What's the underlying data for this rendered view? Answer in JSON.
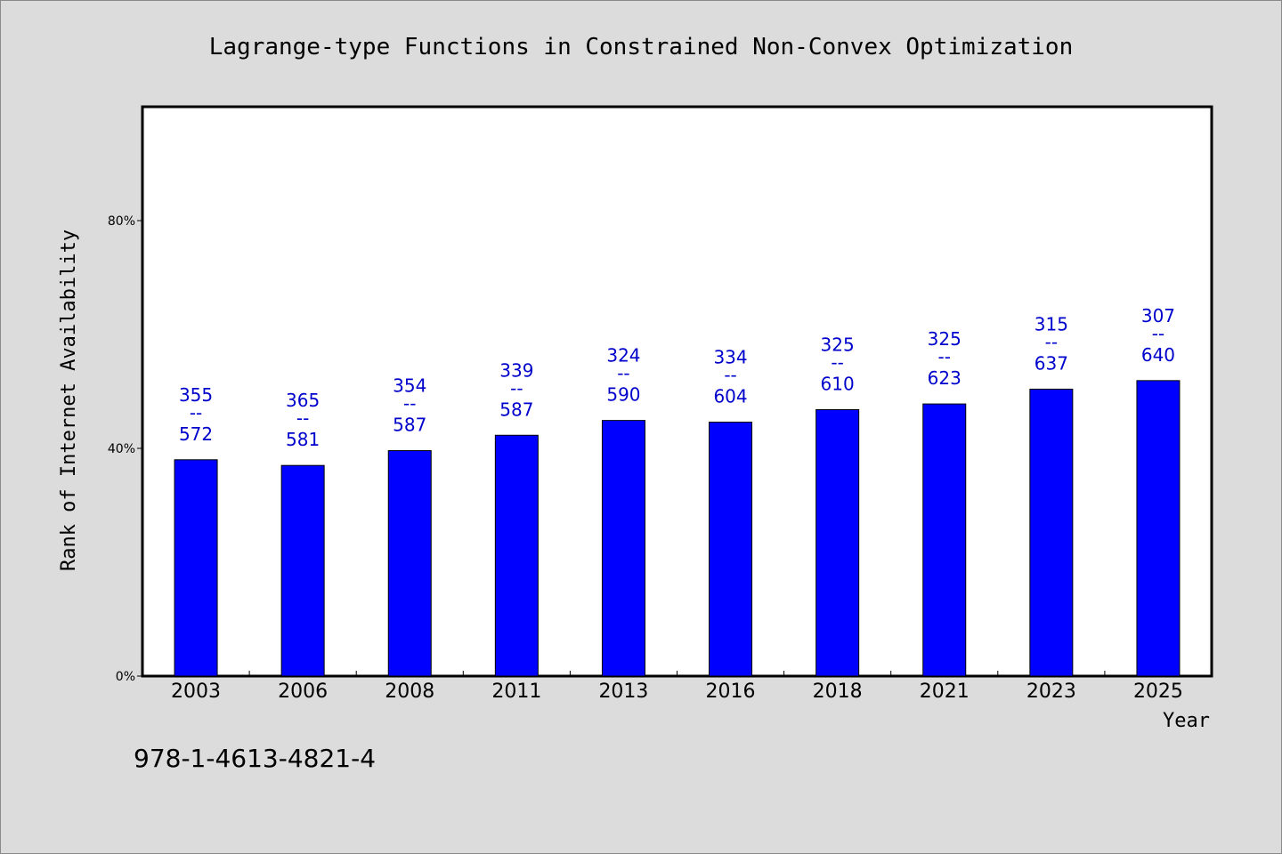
{
  "chart_data": {
    "type": "bar",
    "title": "Lagrange-type Functions in Constrained Non-Convex Optimization",
    "xlabel": "Year",
    "ylabel": "Rank of Internet Availability",
    "categories": [
      "2003",
      "2006",
      "2008",
      "2011",
      "2013",
      "2016",
      "2018",
      "2021",
      "2023",
      "2025"
    ],
    "values": [
      38.0,
      37.0,
      39.6,
      42.3,
      44.9,
      44.6,
      46.8,
      47.8,
      50.4,
      51.9
    ],
    "labels": [
      {
        "top": "355",
        "mid": "--",
        "bottom": "572"
      },
      {
        "top": "365",
        "mid": "--",
        "bottom": "581"
      },
      {
        "top": "354",
        "mid": "--",
        "bottom": "587"
      },
      {
        "top": "339",
        "mid": "--",
        "bottom": "587"
      },
      {
        "top": "324",
        "mid": "--",
        "bottom": "590"
      },
      {
        "top": "334",
        "mid": "--",
        "bottom": "604"
      },
      {
        "top": "325",
        "mid": "--",
        "bottom": "610"
      },
      {
        "top": "325",
        "mid": "--",
        "bottom": "623"
      },
      {
        "top": "315",
        "mid": "--",
        "bottom": "637"
      },
      {
        "top": "307",
        "mid": "--",
        "bottom": "640"
      }
    ],
    "yticks": [
      {
        "value": 0,
        "label": "0%"
      },
      {
        "value": 40,
        "label": "40%"
      },
      {
        "value": 80,
        "label": "80%"
      }
    ],
    "ylim": [
      0,
      100
    ],
    "grid": false,
    "legend": "none"
  },
  "footer": {
    "isbn": "978-1-4613-4821-4"
  },
  "colors": {
    "background": "#dcdcdc",
    "plot_background": "#ffffff",
    "bar_fill": "#0000ff",
    "bar_stroke": "#000000",
    "label_color": "#0000cc"
  }
}
